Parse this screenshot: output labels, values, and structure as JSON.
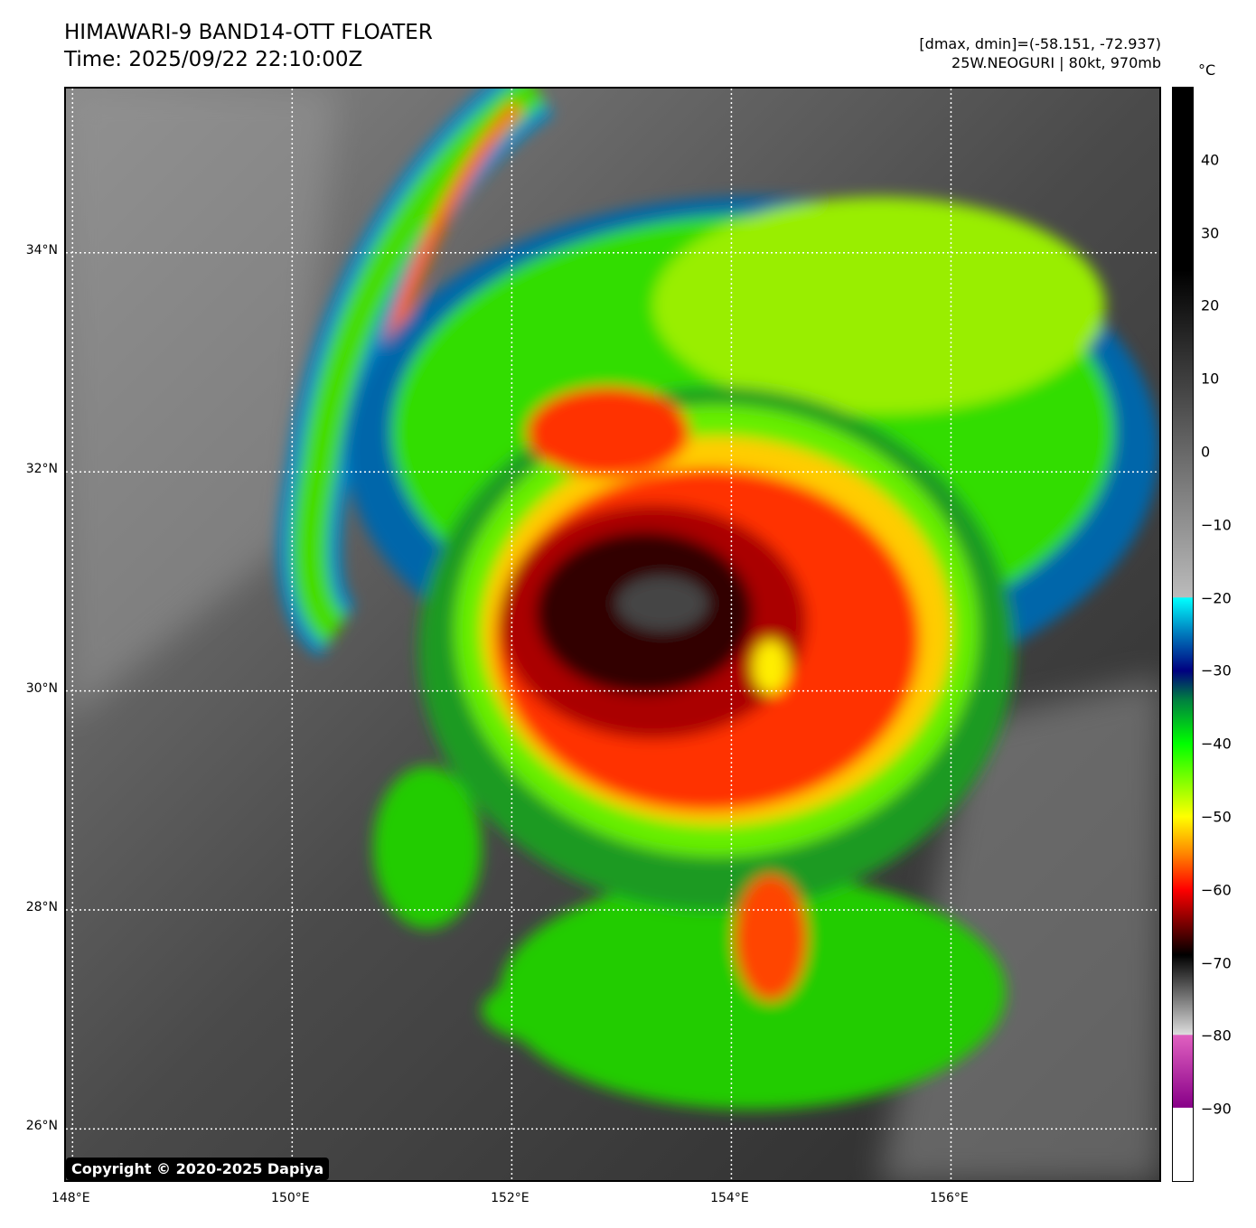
{
  "header": {
    "title": "HIMAWARI-9 BAND14-OTT FLOATER",
    "time": "Time: 2025/09/22 22:10:00Z",
    "range": "[dmax, dmin]=(-58.151, -72.937)",
    "storm": "25W.NEOGURI | 80kt, 970mb"
  },
  "map": {
    "lon_range": [
      147.94,
      157.93
    ],
    "lat_range": [
      25.5,
      35.5
    ],
    "lat_labels": [
      {
        "v": 34,
        "t": "34°N"
      },
      {
        "v": 32,
        "t": "32°N"
      },
      {
        "v": 30,
        "t": "30°N"
      },
      {
        "v": 28,
        "t": "28°N"
      },
      {
        "v": 26,
        "t": "26°N"
      }
    ],
    "lon_labels": [
      {
        "v": 148,
        "t": "148°E"
      },
      {
        "v": 150,
        "t": "150°E"
      },
      {
        "v": 152,
        "t": "152°E"
      },
      {
        "v": 154,
        "t": "154°E"
      },
      {
        "v": 156,
        "t": "156°E"
      }
    ],
    "storm_center": {
      "lon": 153.5,
      "lat": 30.7
    }
  },
  "colorbar": {
    "unit": "°C",
    "range": [
      -100,
      50
    ],
    "ticks": [
      "40",
      "30",
      "20",
      "10",
      "0",
      "−10",
      "−20",
      "−30",
      "−40",
      "−50",
      "−60",
      "−70",
      "−80",
      "−90"
    ],
    "tick_values": [
      40,
      30,
      20,
      10,
      0,
      -10,
      -20,
      -30,
      -40,
      -50,
      -60,
      -70,
      -80,
      -90
    ],
    "stops": [
      {
        "v": 50,
        "c": "#000000"
      },
      {
        "v": 25,
        "c": "#000000"
      },
      {
        "v": -19.9,
        "c": "#bbbbbb"
      },
      {
        "v": -20,
        "c": "#00ffff"
      },
      {
        "v": -25,
        "c": "#0077bb"
      },
      {
        "v": -30,
        "c": "#000080"
      },
      {
        "v": -34,
        "c": "#008040"
      },
      {
        "v": -40,
        "c": "#00ff00"
      },
      {
        "v": -50,
        "c": "#ffff00"
      },
      {
        "v": -55,
        "c": "#ff8800"
      },
      {
        "v": -60,
        "c": "#ff0000"
      },
      {
        "v": -69,
        "c": "#000000"
      },
      {
        "v": -79.9,
        "c": "#dddddd"
      },
      {
        "v": -80,
        "c": "#e060c0"
      },
      {
        "v": -89.9,
        "c": "#880088"
      },
      {
        "v": -90,
        "c": "#ffffff"
      },
      {
        "v": -100,
        "c": "#ffffff"
      }
    ]
  },
  "copyright": "Copyright © 2020-2025 Dapiya"
}
